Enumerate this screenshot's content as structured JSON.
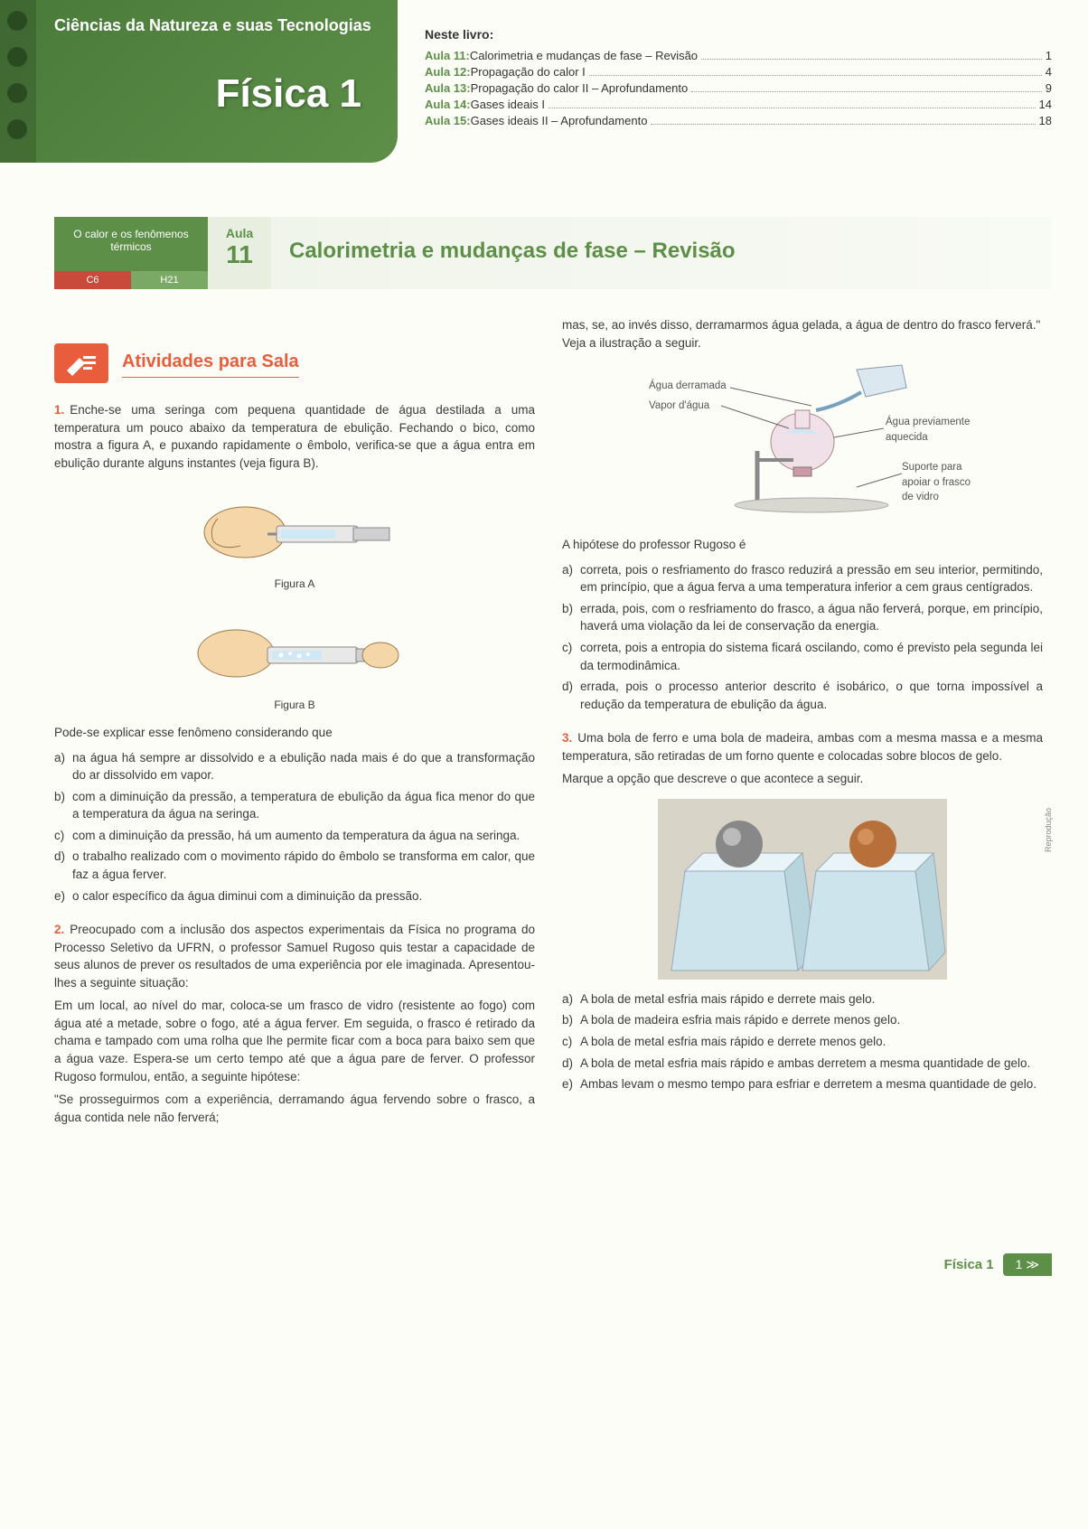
{
  "header": {
    "subject_area": "Ciências da Natureza e suas Tecnologias",
    "title": "Física 1",
    "toc_heading": "Neste livro:",
    "toc": [
      {
        "label": "Aula 11:",
        "text": "Calorimetria e mudanças de fase – Revisão",
        "page": "1"
      },
      {
        "label": "Aula 12:",
        "text": "Propagação do calor I",
        "page": "4"
      },
      {
        "label": "Aula 13:",
        "text": "Propagação do calor II – Aprofundamento",
        "page": "9"
      },
      {
        "label": "Aula 14:",
        "text": "Gases ideais I",
        "page": "14"
      },
      {
        "label": "Aula 15:",
        "text": "Gases ideais II – Aprofundamento",
        "page": "18"
      }
    ],
    "colors": {
      "header_bg_from": "#4a7a3a",
      "header_bg_to": "#5d8f48",
      "accent_orange": "#e85d3b",
      "accent_red": "#c94a3b"
    }
  },
  "lesson": {
    "topic": "O calor e os fenômenos térmicos",
    "code1": "C6",
    "code2": "H21",
    "aula_label": "Aula",
    "aula_num": "11",
    "title": "Calorimetria e mudanças de fase – Revisão"
  },
  "activities": {
    "heading": "Atividades para Sala"
  },
  "q1": {
    "num": "1.",
    "text": "Enche-se uma seringa com pequena quantidade de água destilada a uma temperatura um pouco abaixo da temperatura de ebulição. Fechando o bico, como mostra a figura A, e puxando rapidamente o êmbolo, verifica-se que a água entra em ebulição durante alguns instantes (veja figura B).",
    "figA_caption": "Figura A",
    "figB_caption": "Figura B",
    "lead": "Pode-se explicar esse fenômeno considerando que",
    "opts": {
      "a": "na água há sempre ar dissolvido e a ebulição nada mais é do que a transformação do ar dissolvido em vapor.",
      "b": "com a diminuição da pressão, a temperatura de ebulição da água fica menor do que a temperatura da água na seringa.",
      "c": "com a diminuição da pressão, há um aumento da temperatura da água na seringa.",
      "d": "o trabalho realizado com o movimento rápido do êmbolo se transforma em calor, que faz a água ferver.",
      "e": "o calor específico da água diminui com a diminuição da pressão."
    }
  },
  "q2": {
    "num": "2.",
    "text": "Preocupado com a inclusão dos aspectos experimentais da Física no programa do Processo Seletivo da UFRN, o professor Samuel Rugoso quis testar a capacidade de seus alunos de prever os resultados de uma experiência por ele imaginada. Apresentou-lhes a seguinte situação:",
    "para2": "Em um local, ao nível do mar, coloca-se um frasco de vidro (resistente ao fogo) com água até a metade, sobre o fogo, até a água ferver. Em seguida, o frasco é retirado da chama e tampado com uma rolha que lhe permite ficar com a boca para baixo sem que a água vaze. Espera-se um certo tempo até que a água pare de ferver. O professor Rugoso formulou, então, a seguinte hipótese:",
    "quote": "\"Se prosseguirmos com a experiência, derramando água fervendo sobre o frasco, a água contida nele não ferverá;",
    "cont": "mas, se, ao invés disso, derramarmos água gelada, a água de dentro do frasco ferverá.\" Veja a ilustração a seguir.",
    "diagram_labels": {
      "l1": "Água derramada",
      "l2": "Vapor d'água",
      "l3": "Água previamente aquecida",
      "l4": "Suporte para apoiar o frasco de vidro"
    },
    "lead": "A hipótese do professor Rugoso é",
    "opts": {
      "a": "correta, pois o resfriamento do frasco reduzirá a pressão em seu interior, permitindo, em princípio, que a água ferva a uma temperatura inferior a cem graus centígrados.",
      "b": "errada, pois, com o resfriamento do frasco, a água não ferverá, porque, em princípio, haverá uma violação da lei de conservação da energia.",
      "c": "correta, pois a entropia do sistema ficará oscilando, como é previsto pela segunda lei da termodinâmica.",
      "d": "errada, pois o processo anterior descrito é isobárico, o que torna impossível a redução da temperatura de ebulição da água."
    }
  },
  "q3": {
    "num": "3.",
    "text": "Uma bola de ferro e uma bola de madeira, ambas com a mesma massa e a mesma temperatura, são retiradas de um forno quente e colocadas sobre blocos de gelo.",
    "lead": "Marque a opção que descreve o que acontece a seguir.",
    "img_credit": "Reprodução",
    "opts": {
      "a": "A bola de metal esfria mais rápido e derrete mais gelo.",
      "b": "A bola de madeira esfria mais rápido e derrete menos gelo.",
      "c": "A bola de metal esfria mais rápido e derrete menos gelo.",
      "d": "A bola de metal esfria mais rápido e ambas derretem a mesma quantidade de gelo.",
      "e": "Ambas levam o mesmo tempo para esfriar e derretem a mesma quantidade de gelo."
    }
  },
  "footer": {
    "subject": "Física 1",
    "page": "1"
  }
}
